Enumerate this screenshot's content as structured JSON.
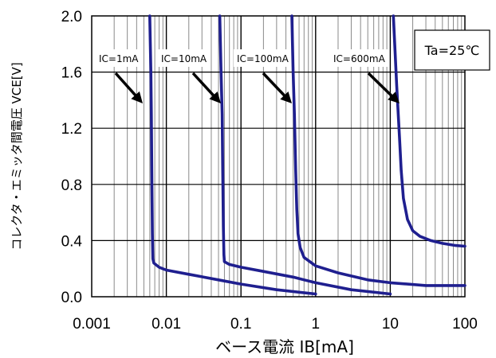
{
  "chart_data": {
    "type": "line",
    "x_scale": "log",
    "xlim": [
      0.001,
      100
    ],
    "ylim": [
      0.0,
      2.0
    ],
    "xlabel": "ベース電流  IB[mA]",
    "ylabel": "コレクタ・エミッタ間電圧  VCE[V]",
    "x_ticks": [
      "0.001",
      "0.01",
      "0.1",
      "1",
      "10",
      "100"
    ],
    "y_ticks": [
      "0.0",
      "0.4",
      "0.8",
      "1.2",
      "1.6",
      "2.0"
    ],
    "grid": true,
    "condition_label": "Ta=25℃",
    "line_color": "#1f1f8f",
    "series": [
      {
        "name": "IC=1mA",
        "x": [
          0.006,
          0.0062,
          0.0063,
          0.0064,
          0.0065,
          0.0066,
          0.0068,
          0.008,
          0.01,
          0.02,
          0.05,
          0.1,
          0.3,
          1.0
        ],
        "y": [
          2.0,
          1.6,
          1.3,
          0.8,
          0.45,
          0.27,
          0.24,
          0.21,
          0.19,
          0.16,
          0.12,
          0.09,
          0.05,
          0.02
        ]
      },
      {
        "name": "IC=10mA",
        "x": [
          0.052,
          0.054,
          0.056,
          0.057,
          0.058,
          0.059,
          0.06,
          0.07,
          0.1,
          0.2,
          0.5,
          1,
          3,
          10
        ],
        "y": [
          2.0,
          1.6,
          1.3,
          0.9,
          0.5,
          0.3,
          0.25,
          0.23,
          0.21,
          0.18,
          0.14,
          0.1,
          0.05,
          0.02
        ]
      },
      {
        "name": "IC=100mA",
        "x": [
          0.48,
          0.5,
          0.52,
          0.54,
          0.56,
          0.58,
          0.62,
          0.7,
          1.0,
          2,
          5,
          10,
          30,
          100
        ],
        "y": [
          2.0,
          1.6,
          1.3,
          0.9,
          0.62,
          0.45,
          0.35,
          0.28,
          0.22,
          0.17,
          0.12,
          0.1,
          0.08,
          0.08
        ]
      },
      {
        "name": "IC=600mA",
        "x": [
          11.0,
          11.6,
          12.2,
          12.8,
          13.4,
          14.0,
          15.0,
          17.0,
          20.0,
          25.0,
          35.0,
          50.0,
          75.0,
          100.0
        ],
        "y": [
          2.0,
          1.75,
          1.5,
          1.3,
          1.1,
          0.9,
          0.7,
          0.55,
          0.47,
          0.43,
          0.4,
          0.38,
          0.365,
          0.36
        ]
      }
    ],
    "annotations": [
      "IC=1mA",
      "IC=10mA",
      "IC=100mA",
      "IC=600mA"
    ]
  }
}
